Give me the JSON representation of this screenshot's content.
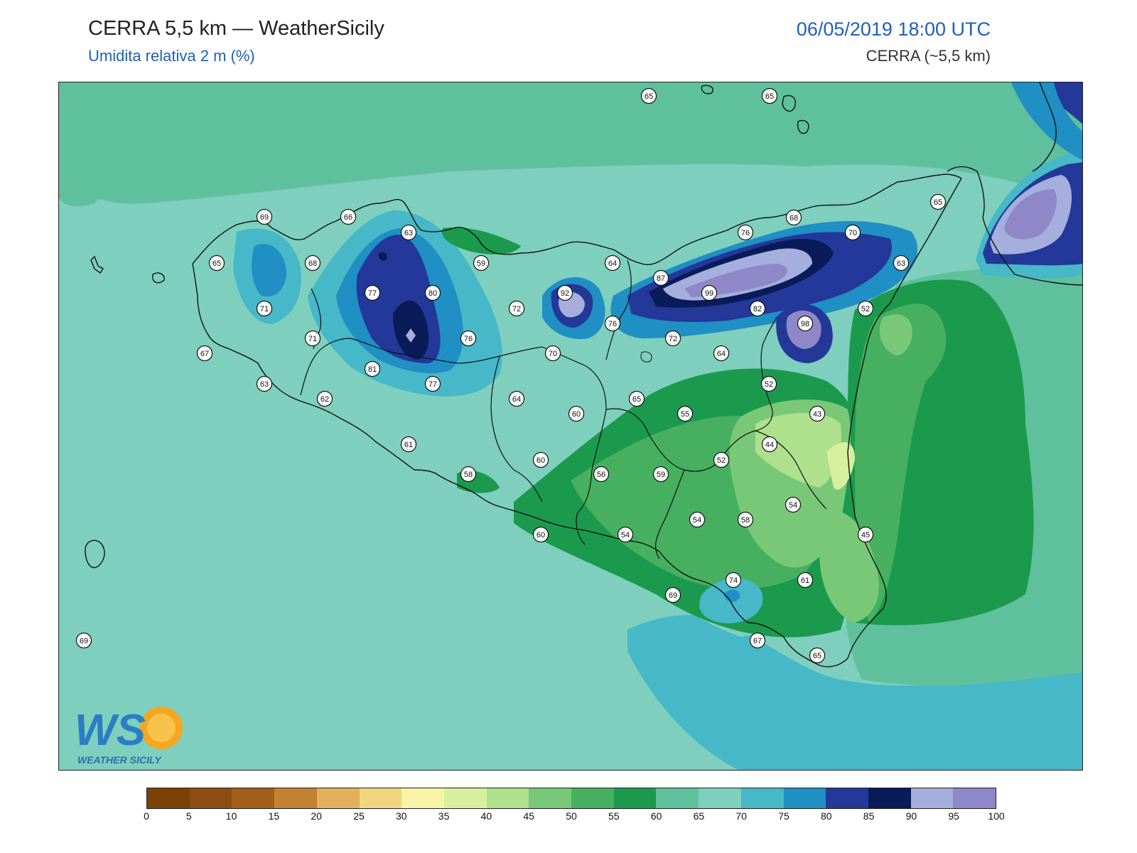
{
  "header": {
    "title": "CERRA 5,5 km — WeatherSicily",
    "subtitle": "Umidita relativa 2 m (%)",
    "datetime": "06/05/2019 18:00 UTC",
    "model": "CERRA (~5,5 km)"
  },
  "logo": {
    "big_text": "WS",
    "brand_text": "WEATHER SICILY"
  },
  "colorbar": {
    "ticks": [
      "0",
      "5",
      "10",
      "15",
      "20",
      "25",
      "30",
      "35",
      "40",
      "45",
      "50",
      "55",
      "60",
      "65",
      "70",
      "75",
      "80",
      "85",
      "90",
      "95",
      "100"
    ],
    "colors": [
      "#7a4208",
      "#8c4c12",
      "#a35e1a",
      "#c38133",
      "#e3b15e",
      "#f0d67f",
      "#f7f3a9",
      "#d8ef9f",
      "#aee08e",
      "#78c878",
      "#46b060",
      "#1b9a4e",
      "#5fc09d",
      "#7ecfbd",
      "#46b8c8",
      "#1f8fc4",
      "#233898",
      "#0a1b5a",
      "#a5aedc",
      "#8f88c8"
    ]
  },
  "stations": [
    {
      "value": "65"
    },
    {
      "value": "65"
    },
    {
      "value": "69"
    },
    {
      "value": "66"
    },
    {
      "value": "63"
    },
    {
      "value": "68"
    },
    {
      "value": "65"
    },
    {
      "value": "71"
    },
    {
      "value": "77"
    },
    {
      "value": "80"
    },
    {
      "value": "59"
    },
    {
      "value": "71"
    },
    {
      "value": "67"
    },
    {
      "value": "76"
    },
    {
      "value": "81"
    },
    {
      "value": "77"
    },
    {
      "value": "63"
    },
    {
      "value": "62"
    },
    {
      "value": "92"
    },
    {
      "value": "72"
    },
    {
      "value": "76"
    },
    {
      "value": "70"
    },
    {
      "value": "64"
    },
    {
      "value": "87"
    },
    {
      "value": "99"
    },
    {
      "value": "76"
    },
    {
      "value": "68"
    },
    {
      "value": "70"
    },
    {
      "value": "65"
    },
    {
      "value": "63"
    },
    {
      "value": "82"
    },
    {
      "value": "98"
    },
    {
      "value": "52"
    },
    {
      "value": "72"
    },
    {
      "value": "64"
    },
    {
      "value": "52"
    },
    {
      "value": "64"
    },
    {
      "value": "60"
    },
    {
      "value": "65"
    },
    {
      "value": "55"
    },
    {
      "value": "43"
    },
    {
      "value": "44"
    },
    {
      "value": "61"
    },
    {
      "value": "60"
    },
    {
      "value": "56"
    },
    {
      "value": "59"
    },
    {
      "value": "52"
    },
    {
      "value": "58"
    },
    {
      "value": "54"
    },
    {
      "value": "58"
    },
    {
      "value": "54"
    },
    {
      "value": "60"
    },
    {
      "value": "54"
    },
    {
      "value": "45"
    },
    {
      "value": "74"
    },
    {
      "value": "61"
    },
    {
      "value": "69"
    },
    {
      "value": "67"
    },
    {
      "value": "65"
    },
    {
      "value": "69"
    }
  ]
}
